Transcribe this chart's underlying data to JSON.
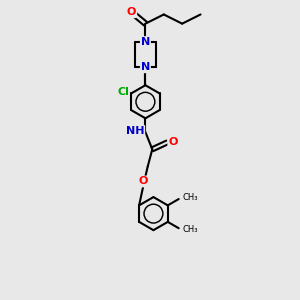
{
  "bg_color": "#e8e8e8",
  "bond_color": "#000000",
  "bond_width": 1.5,
  "N_color": "#0000cc",
  "O_color": "#ff0000",
  "Cl_color": "#00aa00",
  "figsize": [
    3.0,
    3.0
  ],
  "dpi": 100,
  "xlim": [
    0,
    10
  ],
  "ylim": [
    0,
    13
  ]
}
